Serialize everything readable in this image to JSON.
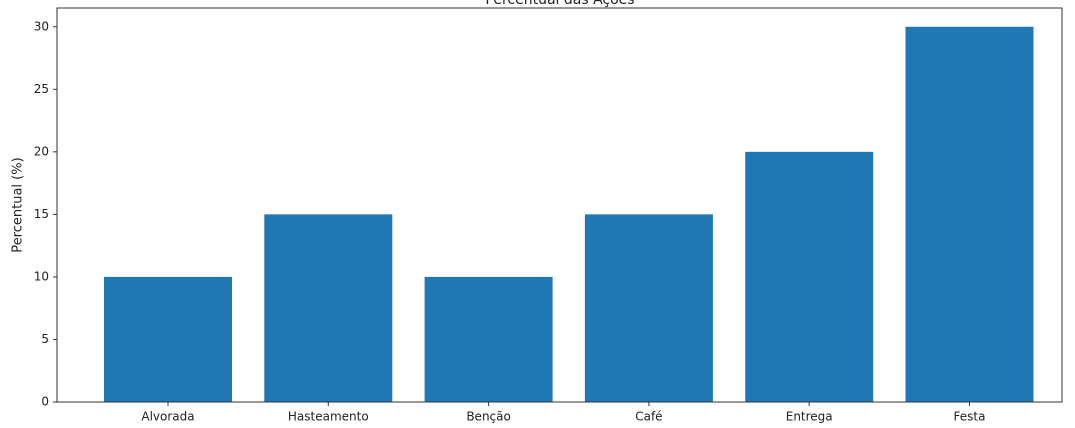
{
  "chart_data": {
    "type": "bar",
    "title": "Percentual das Ações",
    "ylabel": "Percentual (%)",
    "categories": [
      "Alvorada",
      "Hasteamento",
      "Benção",
      "Café",
      "Entrega",
      "Festa"
    ],
    "values": [
      10,
      15,
      10,
      15,
      20,
      30
    ],
    "color": "#1f77b4",
    "ylim": [
      0,
      31.5
    ],
    "yticks": [
      0,
      5,
      10,
      15,
      20,
      25,
      30
    ],
    "grid": false
  }
}
